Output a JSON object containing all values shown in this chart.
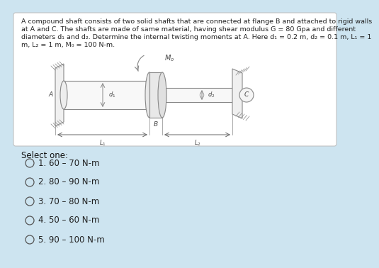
{
  "background_color": "#cde4f0",
  "question_box_color": "#ffffff",
  "question_box_border": "#bbbbbb",
  "question_text_line1": "A compound shaft consists of two solid shafts that are connected at flange B and attached to rigid walls",
  "question_text_line2": "at A and C. The shafts are made of same material, having shear modulus G = 80 Gpa and different",
  "question_text_line3": "diameters d₁ and d₂. Determine the internal twisting moments at A. Here d₁ = 0.2 m, d₂ = 0.1 m, L₁ = 1",
  "question_text_line4": "m, L₂ = 1 m, M₀ = 100 N-m.",
  "select_text": "Select one:",
  "options": [
    "1. 60 – 70 N-m",
    "2. 80 – 90 N-m",
    "3. 70 – 80 N-m",
    "4. 50 – 60 N-m",
    "5. 90 – 100 N-m"
  ],
  "font_size_question": 6.8,
  "font_size_options": 8.5,
  "font_size_select": 8.5,
  "text_color": "#222222",
  "select_color": "#111111",
  "circle_color": "#555555",
  "sketch_color": "#888888",
  "sketch_lw": 0.8
}
